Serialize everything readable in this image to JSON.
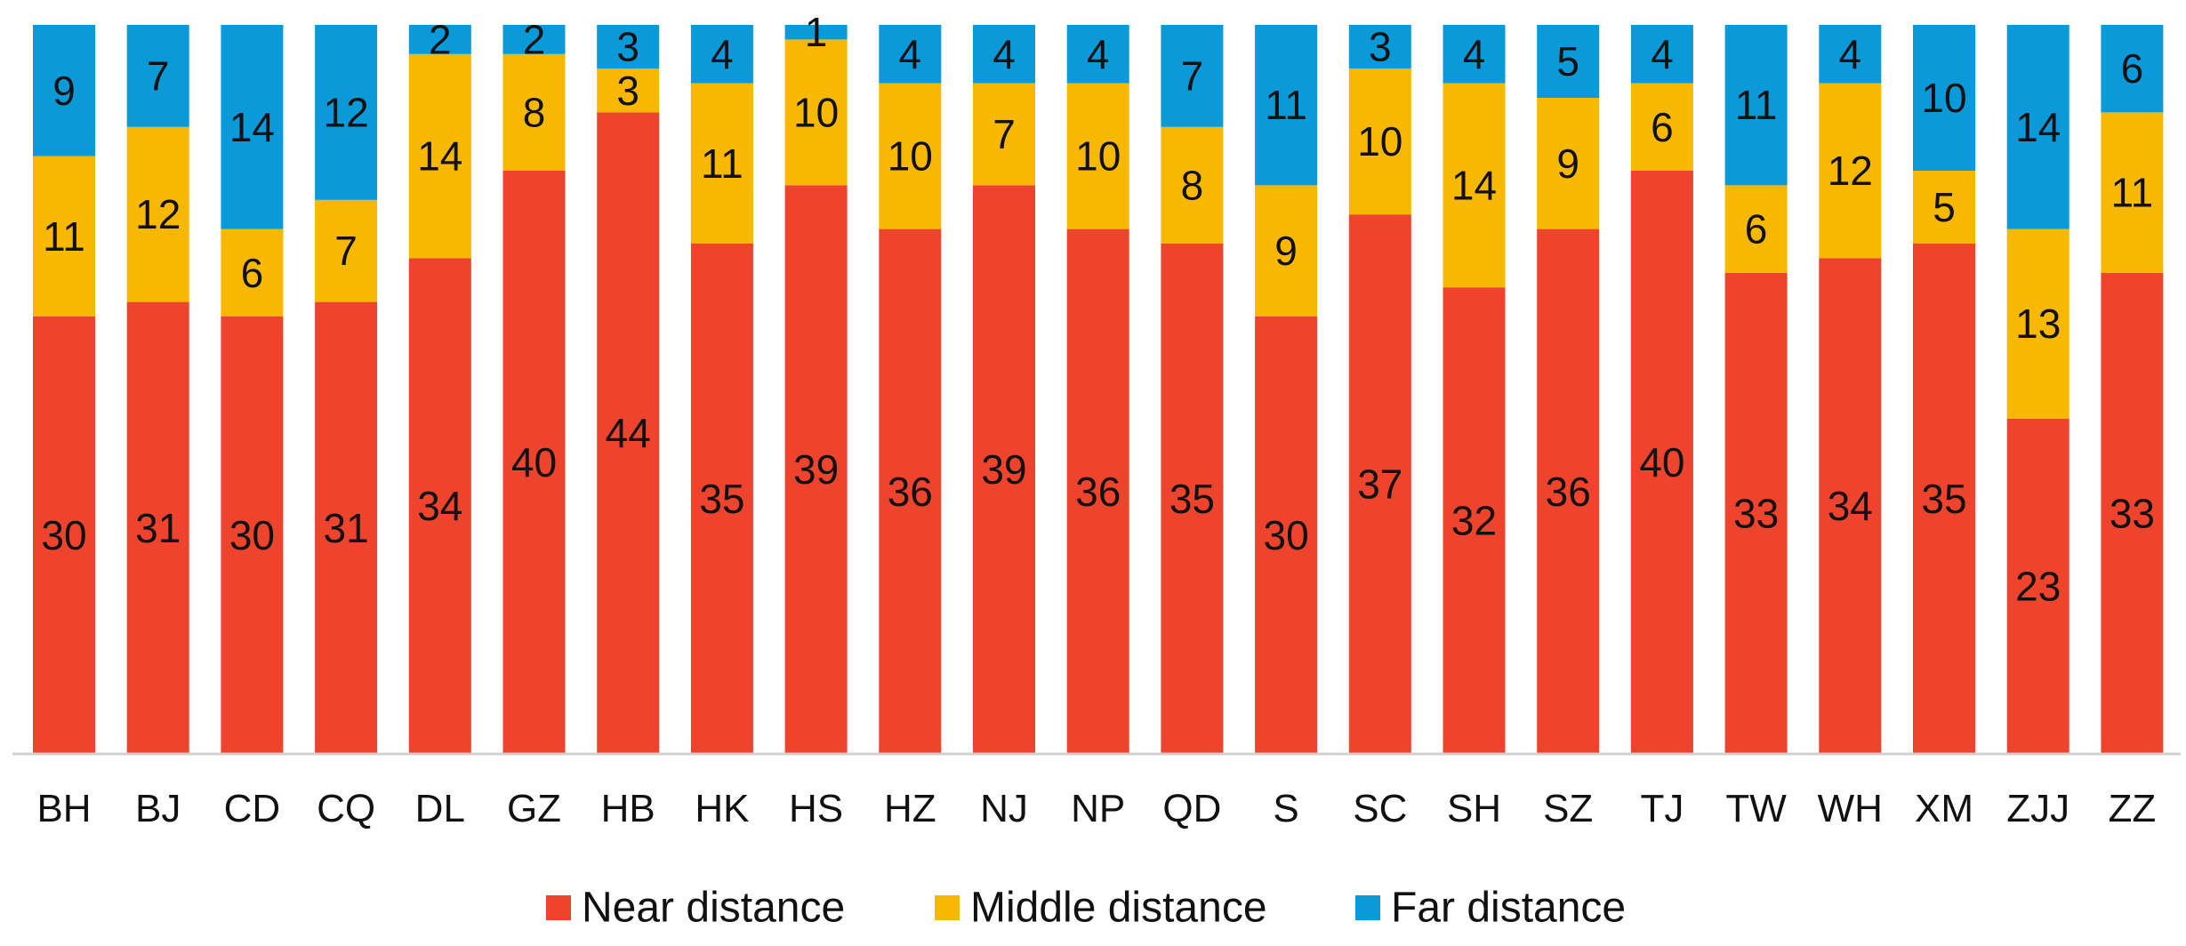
{
  "chart_data": {
    "type": "bar",
    "stacked": true,
    "normalized": true,
    "categories": [
      "BH",
      "BJ",
      "CD",
      "CQ",
      "DL",
      "GZ",
      "HB",
      "HK",
      "HS",
      "HZ",
      "NJ",
      "NP",
      "QD",
      "S",
      "SC",
      "SH",
      "SZ",
      "TJ",
      "TW",
      "WH",
      "XM",
      "ZJJ",
      "ZZ"
    ],
    "series": [
      {
        "name": "Near distance",
        "color": "#ee432d",
        "values": [
          30,
          31,
          30,
          31,
          34,
          40,
          44,
          35,
          39,
          36,
          39,
          36,
          35,
          30,
          37,
          32,
          36,
          40,
          33,
          34,
          35,
          23,
          33
        ]
      },
      {
        "name": "Middle distance",
        "color": "#f9b800",
        "values": [
          11,
          12,
          6,
          7,
          14,
          8,
          3,
          11,
          10,
          10,
          7,
          10,
          8,
          9,
          10,
          14,
          9,
          6,
          6,
          12,
          5,
          13,
          11
        ]
      },
      {
        "name": "Far distance",
        "color": "#0b9ad9",
        "values": [
          9,
          7,
          14,
          12,
          2,
          2,
          3,
          4,
          1,
          4,
          4,
          4,
          7,
          11,
          3,
          4,
          5,
          4,
          11,
          4,
          10,
          14,
          6
        ]
      }
    ],
    "legend_position": "bottom",
    "grid": false,
    "data_labels": true
  }
}
